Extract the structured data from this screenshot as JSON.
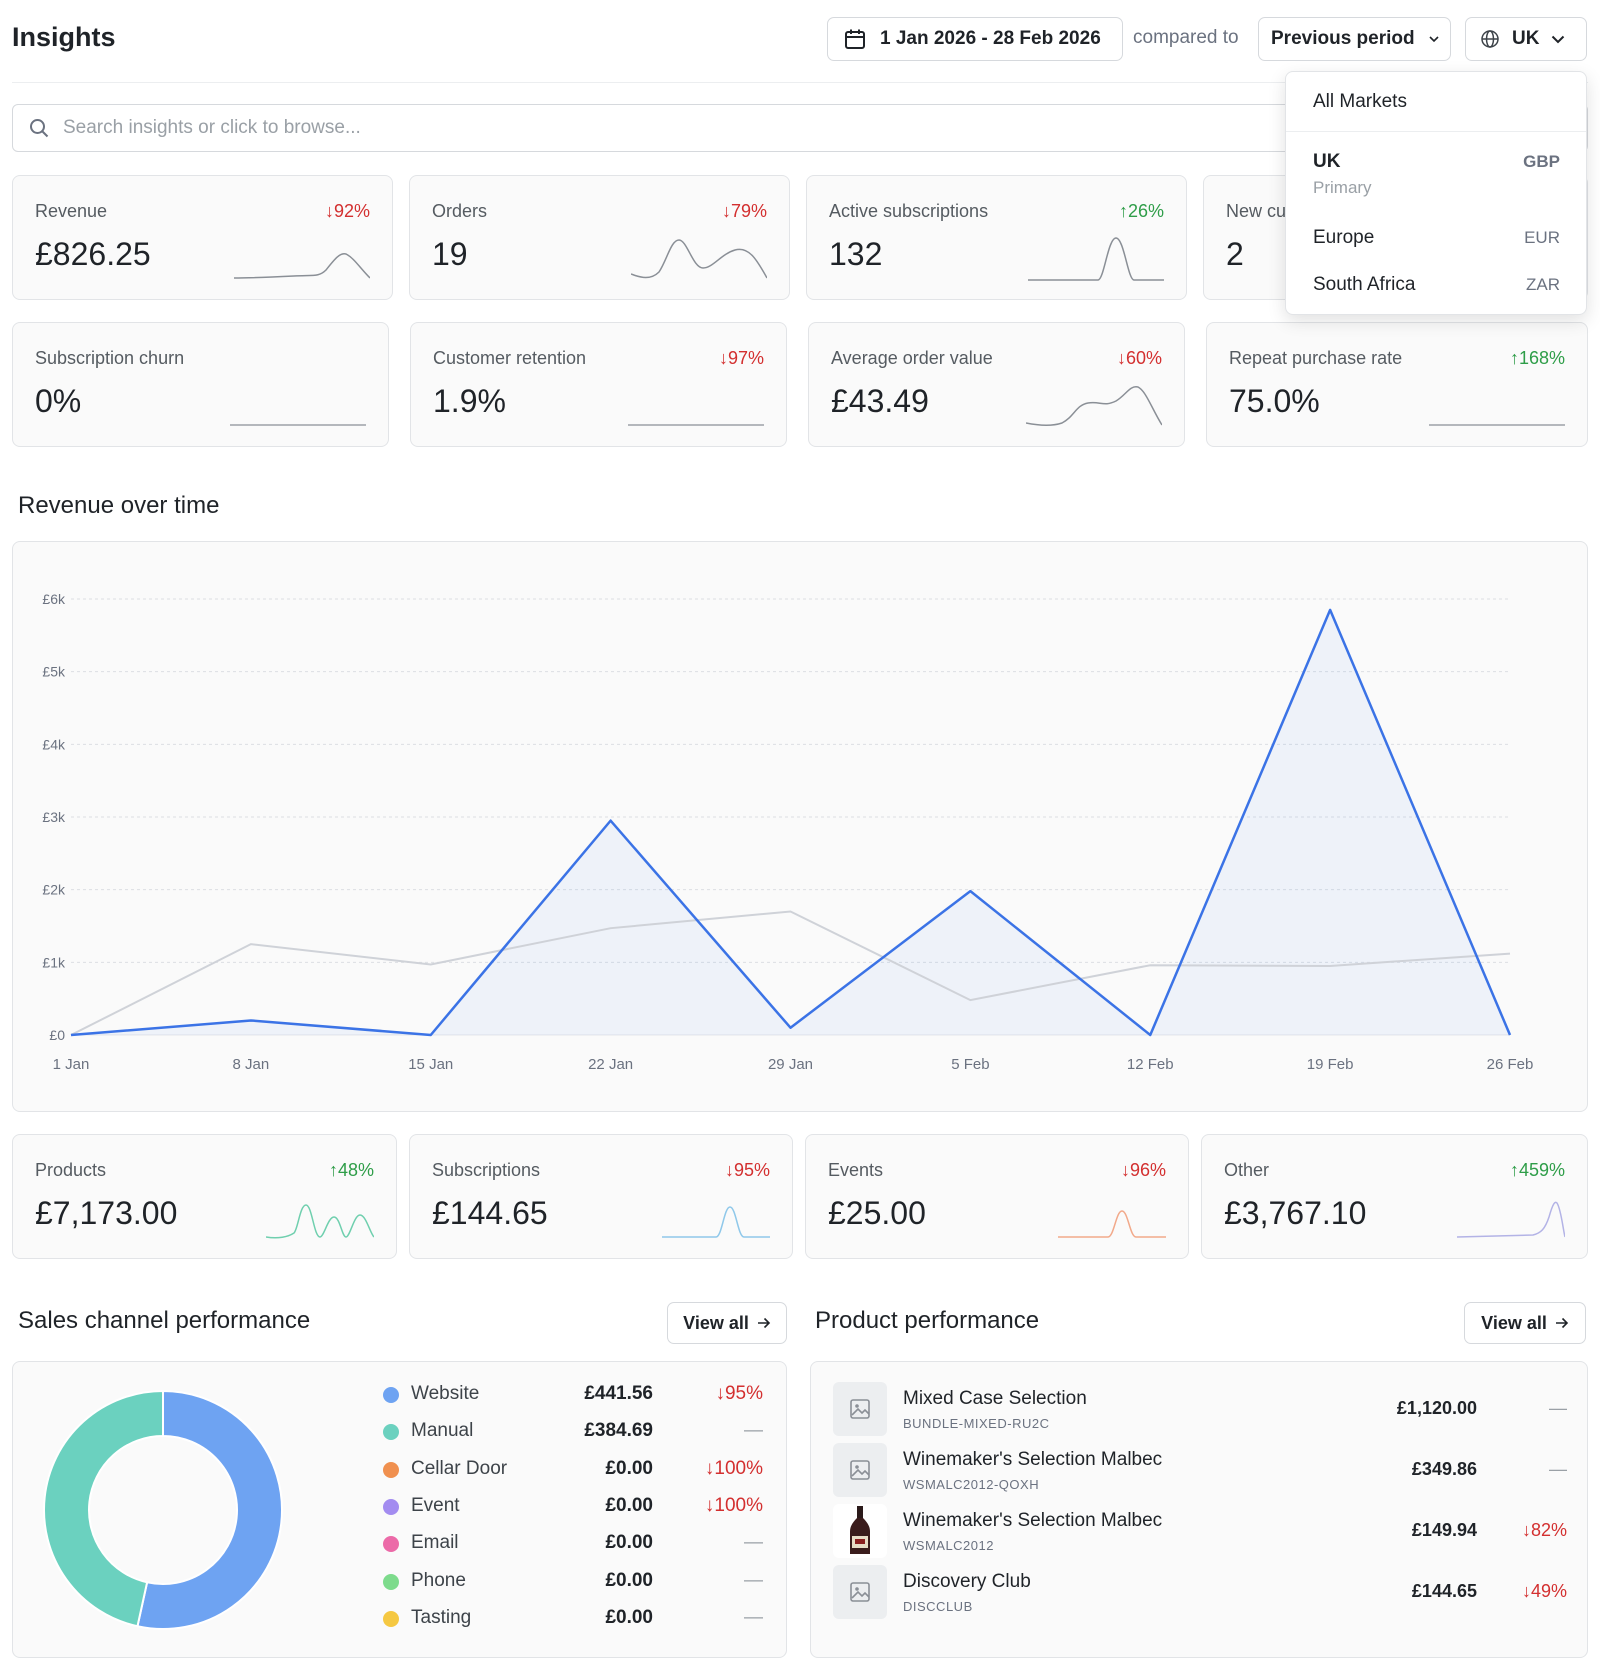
{
  "header": {
    "title": "Insights",
    "date_range": "1 Jan 2026 - 28 Feb 2026",
    "compared_to": "compared to",
    "comparison": "Previous period",
    "market": "UK"
  },
  "search": {
    "placeholder": "Search insights or click to browse..."
  },
  "kpis_row1": [
    {
      "label": "Revenue",
      "value": "£826.25",
      "delta": "↓92%",
      "direction": "down"
    },
    {
      "label": "Orders",
      "value": "19",
      "delta": "↓79%",
      "direction": "down"
    },
    {
      "label": "Active subscriptions",
      "value": "132",
      "delta": "↑26%",
      "direction": "up"
    },
    {
      "label": "New cu",
      "value": "2",
      "delta": "",
      "direction": ""
    }
  ],
  "kpis_row2": [
    {
      "label": "Subscription churn",
      "value": "0%",
      "delta": "",
      "direction": ""
    },
    {
      "label": "Customer retention",
      "value": "1.9%",
      "delta": "↓97%",
      "direction": "down"
    },
    {
      "label": "Average order value",
      "value": "£43.49",
      "delta": "↓60%",
      "direction": "down"
    },
    {
      "label": "Repeat purchase rate",
      "value": "75.0%",
      "delta": "↑168%",
      "direction": "up"
    }
  ],
  "revenue_section_title": "Revenue over time",
  "chart_data": {
    "type": "area",
    "title": "",
    "x": [
      "1 Jan",
      "8 Jan",
      "15 Jan",
      "22 Jan",
      "29 Jan",
      "5 Feb",
      "12 Feb",
      "19 Feb",
      "26 Feb"
    ],
    "y_ticks": [
      "£0",
      "£1k",
      "£2k",
      "£3k",
      "£4k",
      "£5k",
      "£6k"
    ],
    "ylim": [
      0,
      6000
    ],
    "grid": true,
    "series": [
      {
        "values": [
          0,
          200,
          0,
          2950,
          100,
          1980,
          0,
          5850,
          0
        ],
        "color": "#3b73e6"
      },
      {
        "values": [
          0,
          1250,
          970,
          1470,
          1700,
          480,
          960,
          950,
          1120
        ],
        "color": "#cfd2d8"
      }
    ]
  },
  "categories": [
    {
      "label": "Products",
      "value": "£7,173.00",
      "delta": "↑48%",
      "direction": "up",
      "color": "#6fcfae"
    },
    {
      "label": "Subscriptions",
      "value": "£144.65",
      "delta": "↓95%",
      "direction": "down",
      "color": "#8fc8ea"
    },
    {
      "label": "Events",
      "value": "£25.00",
      "delta": "↓96%",
      "direction": "down",
      "color": "#f2a98a"
    },
    {
      "label": "Other",
      "value": "£3,767.10",
      "delta": "↑459%",
      "direction": "up",
      "color": "#b3b3e6"
    }
  ],
  "sales_channel": {
    "title": "Sales channel performance",
    "view_all": "View all",
    "channels": [
      {
        "name": "Website",
        "amount": "£441.56",
        "change": "↓95%",
        "direction": "down",
        "color": "#6ea3f2"
      },
      {
        "name": "Manual",
        "amount": "£384.69",
        "change": "—",
        "direction": "flat",
        "color": "#6bd1bf"
      },
      {
        "name": "Cellar Door",
        "amount": "£0.00",
        "change": "↓100%",
        "direction": "down",
        "color": "#f0904f"
      },
      {
        "name": "Event",
        "amount": "£0.00",
        "change": "↓100%",
        "direction": "down",
        "color": "#a38cf0"
      },
      {
        "name": "Email",
        "amount": "£0.00",
        "change": "—",
        "direction": "flat",
        "color": "#ec6aa8"
      },
      {
        "name": "Phone",
        "amount": "£0.00",
        "change": "—",
        "direction": "flat",
        "color": "#7ddb8c"
      },
      {
        "name": "Tasting",
        "amount": "£0.00",
        "change": "—",
        "direction": "flat",
        "color": "#f5c842"
      }
    ],
    "donut": [
      {
        "name": "Website",
        "value": 441.56,
        "color": "#6ea3f2"
      },
      {
        "name": "Manual",
        "value": 384.69,
        "color": "#6bd1bf"
      }
    ]
  },
  "product_performance": {
    "title": "Product performance",
    "view_all": "View all",
    "products": [
      {
        "name": "Mixed Case Selection",
        "sku": "BUNDLE-MIXED-RU2C",
        "price": "£1,120.00",
        "change": "—",
        "direction": "flat",
        "thumb": "image-placeholder-icon"
      },
      {
        "name": "Winemaker's Selection Malbec",
        "sku": "WSMALC2012-QOXH",
        "price": "£349.86",
        "change": "—",
        "direction": "flat",
        "thumb": "image-placeholder-icon"
      },
      {
        "name": "Winemaker's Selection Malbec",
        "sku": "WSMALC2012",
        "price": "£149.94",
        "change": "↓82%",
        "direction": "down",
        "thumb": "wine-bottle-image"
      },
      {
        "name": "Discovery Club",
        "sku": "DISCCLUB",
        "price": "£144.65",
        "change": "↓49%",
        "direction": "down",
        "thumb": "image-placeholder-icon"
      }
    ]
  },
  "market_dropdown": {
    "all": "All Markets",
    "items": [
      {
        "name": "UK",
        "currency": "GBP",
        "sub": "Primary"
      },
      {
        "name": "Europe",
        "currency": "EUR"
      },
      {
        "name": "South Africa",
        "currency": "ZAR"
      }
    ]
  }
}
